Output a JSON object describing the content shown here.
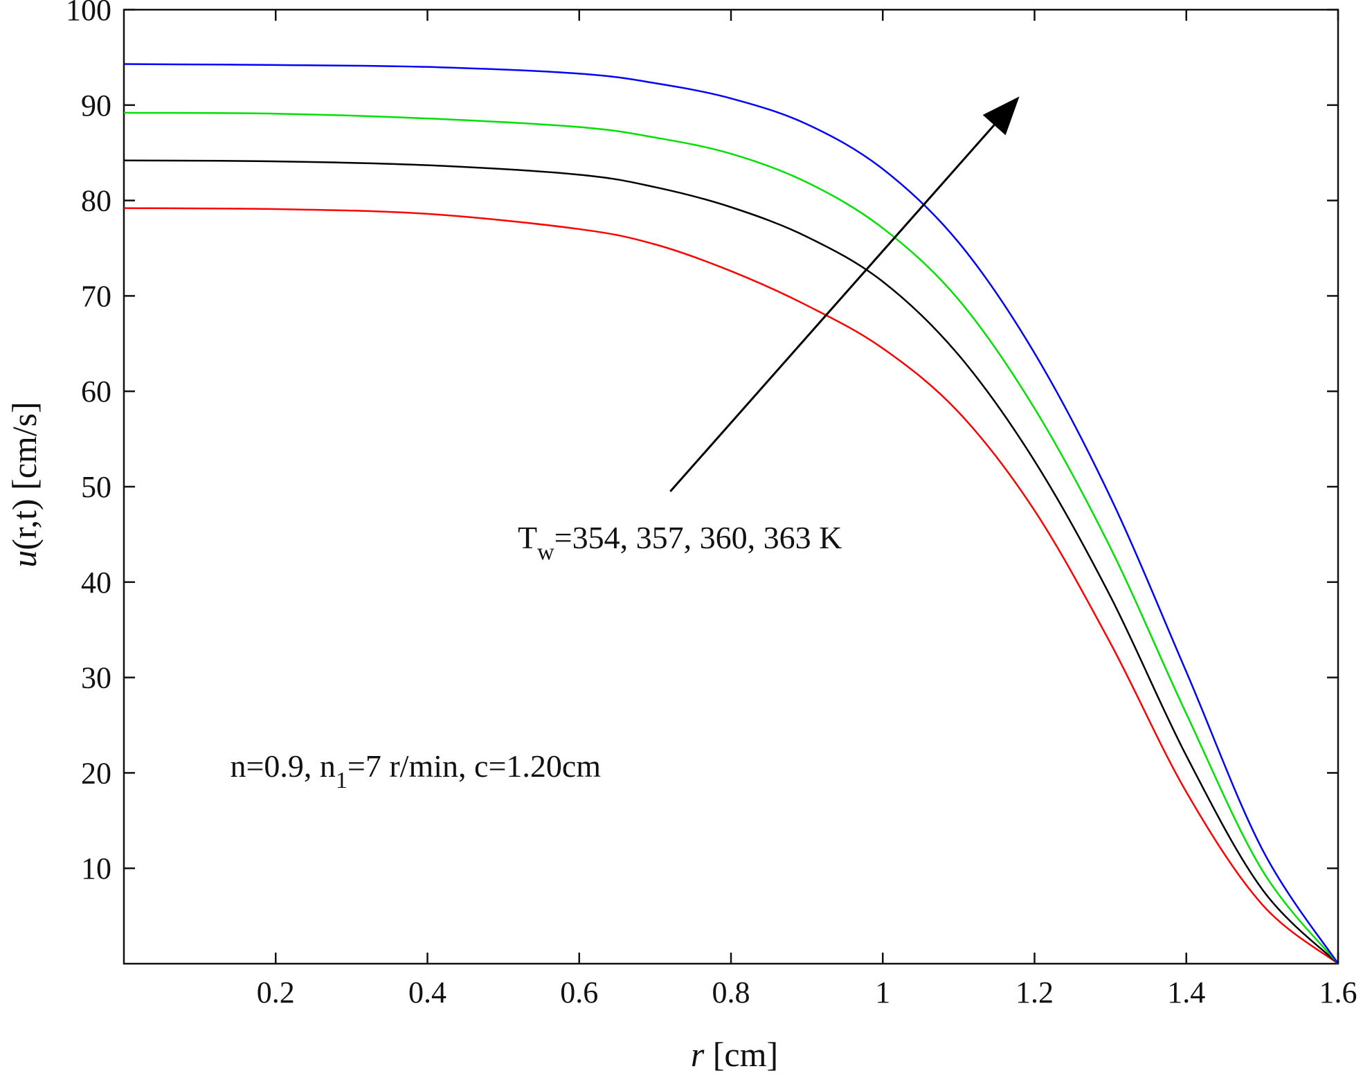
{
  "chart_data": {
    "type": "line",
    "xlabel": "r [cm]",
    "xlabel_var": "r",
    "xlabel_unit": " [cm]",
    "ylabel": "u(r,t) [cm/s]",
    "ylabel_var": "u",
    "ylabel_rest": "(r,t) [cm/s]",
    "xlim": [
      0,
      1.6
    ],
    "ylim": [
      0,
      100
    ],
    "xticks": [
      0.2,
      0.4,
      0.6,
      0.8,
      1,
      1.2,
      1.4,
      1.6
    ],
    "xtick_labels": [
      "0.2",
      "0.4",
      "0.6",
      "0.8",
      "1",
      "1.2",
      "1.4",
      "1.6"
    ],
    "yticks": [
      10,
      20,
      30,
      40,
      50,
      60,
      70,
      80,
      90,
      100
    ],
    "ytick_labels": [
      "10",
      "20",
      "30",
      "40",
      "50",
      "60",
      "70",
      "80",
      "90",
      "100"
    ],
    "grid": false,
    "legend": "none",
    "x": [
      0,
      0.2,
      0.4,
      0.6,
      0.7,
      0.8,
      0.9,
      1.0,
      1.1,
      1.2,
      1.3,
      1.4,
      1.5,
      1.6
    ],
    "series": [
      {
        "color": "#ff0000",
        "values": [
          79.2,
          79.1,
          78.6,
          77.0,
          75.4,
          72.6,
          69.0,
          64.5,
          57.8,
          47.5,
          33.6,
          18.0,
          6.2,
          0
        ]
      },
      {
        "color": "#000000",
        "values": [
          84.2,
          84.1,
          83.7,
          82.7,
          81.4,
          79.3,
          76.2,
          71.5,
          63.8,
          52.7,
          38.5,
          21.8,
          7.8,
          0
        ]
      },
      {
        "color": "#00e000",
        "values": [
          89.2,
          89.1,
          88.6,
          87.7,
          86.6,
          84.9,
          81.9,
          77.1,
          69.6,
          58.2,
          43.6,
          26.2,
          9.8,
          0
        ]
      },
      {
        "color": "#0000ff",
        "values": [
          94.3,
          94.2,
          94.0,
          93.3,
          92.3,
          90.7,
          88.0,
          83.3,
          75.6,
          64.0,
          48.9,
          30.6,
          12.0,
          0
        ]
      }
    ],
    "annotations": {
      "arrow_label_main": "T",
      "arrow_label_sub": "w",
      "arrow_label_rest": "=354, 357, 360, 363 K",
      "arrow_from": [
        0.72,
        49.5
      ],
      "arrow_to": [
        1.18,
        90.9
      ],
      "params_a": "n=0.9, n",
      "params_sub": "1",
      "params_b": "=7 r/min, c=1.20cm",
      "params_at": [
        0.14,
        19.6
      ]
    }
  }
}
